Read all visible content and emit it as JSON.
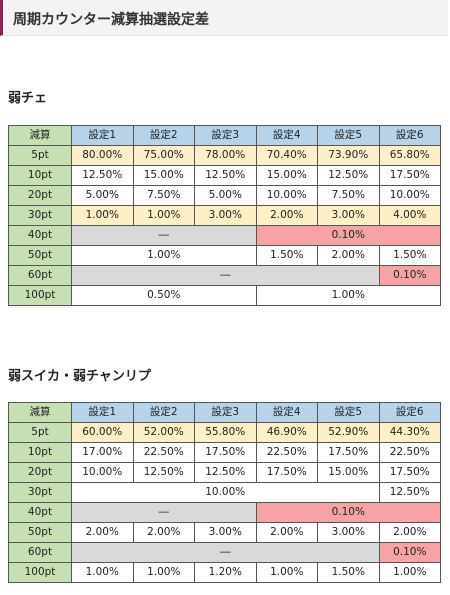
{
  "header": {
    "title": "周期カウンター減算抽選設定差"
  },
  "colors": {
    "header_accent": "#8b2352",
    "column_header": "#b6d3ea",
    "row_label": "#c6dfb3",
    "highlight_yellow": "#fdf0c6",
    "gray": "#d9d9d9",
    "red": "#f7a3a6"
  },
  "tables": [
    {
      "title": "弱チェ",
      "corner": "減算",
      "columns": [
        "設定1",
        "設定2",
        "設定3",
        "設定4",
        "設定5",
        "設定6"
      ],
      "rows": [
        {
          "label": "5pt",
          "cells": [
            {
              "text": "80.00%",
              "span": 1,
              "color": "y"
            },
            {
              "text": "75.00%",
              "span": 1,
              "color": "y"
            },
            {
              "text": "78.00%",
              "span": 1,
              "color": "y"
            },
            {
              "text": "70.40%",
              "span": 1,
              "color": "y"
            },
            {
              "text": "73.90%",
              "span": 1,
              "color": "y"
            },
            {
              "text": "65.80%",
              "span": 1,
              "color": "y"
            }
          ]
        },
        {
          "label": "10pt",
          "cells": [
            {
              "text": "12.50%",
              "span": 1,
              "color": "w"
            },
            {
              "text": "15.00%",
              "span": 1,
              "color": "w"
            },
            {
              "text": "12.50%",
              "span": 1,
              "color": "w"
            },
            {
              "text": "15.00%",
              "span": 1,
              "color": "w"
            },
            {
              "text": "12.50%",
              "span": 1,
              "color": "w"
            },
            {
              "text": "17.50%",
              "span": 1,
              "color": "w"
            }
          ]
        },
        {
          "label": "20pt",
          "cells": [
            {
              "text": "5.00%",
              "span": 1,
              "color": "w"
            },
            {
              "text": "7.50%",
              "span": 1,
              "color": "w"
            },
            {
              "text": "5.00%",
              "span": 1,
              "color": "w"
            },
            {
              "text": "10.00%",
              "span": 1,
              "color": "w"
            },
            {
              "text": "7.50%",
              "span": 1,
              "color": "w"
            },
            {
              "text": "10.00%",
              "span": 1,
              "color": "w"
            }
          ]
        },
        {
          "label": "30pt",
          "cells": [
            {
              "text": "1.00%",
              "span": 1,
              "color": "y"
            },
            {
              "text": "1.00%",
              "span": 1,
              "color": "y"
            },
            {
              "text": "3.00%",
              "span": 1,
              "color": "y"
            },
            {
              "text": "2.00%",
              "span": 1,
              "color": "y"
            },
            {
              "text": "3.00%",
              "span": 1,
              "color": "y"
            },
            {
              "text": "4.00%",
              "span": 1,
              "color": "y"
            }
          ]
        },
        {
          "label": "40pt",
          "cells": [
            {
              "text": "―",
              "span": 3,
              "color": "g"
            },
            {
              "text": "0.10%",
              "span": 3,
              "color": "r"
            }
          ]
        },
        {
          "label": "50pt",
          "cells": [
            {
              "text": "1.00%",
              "span": 3,
              "color": "w"
            },
            {
              "text": "1.50%",
              "span": 1,
              "color": "w"
            },
            {
              "text": "2.00%",
              "span": 1,
              "color": "w"
            },
            {
              "text": "1.50%",
              "span": 1,
              "color": "w"
            }
          ]
        },
        {
          "label": "60pt",
          "cells": [
            {
              "text": "―",
              "span": 5,
              "color": "g"
            },
            {
              "text": "0.10%",
              "span": 1,
              "color": "r"
            }
          ]
        },
        {
          "label": "100pt",
          "cells": [
            {
              "text": "0.50%",
              "span": 3,
              "color": "w"
            },
            {
              "text": "1.00%",
              "span": 3,
              "color": "w"
            }
          ]
        }
      ]
    },
    {
      "title": "弱スイカ・弱チャンリプ",
      "corner": "減算",
      "columns": [
        "設定1",
        "設定2",
        "設定3",
        "設定4",
        "設定5",
        "設定6"
      ],
      "rows": [
        {
          "label": "5pt",
          "cells": [
            {
              "text": "60.00%",
              "span": 1,
              "color": "y"
            },
            {
              "text": "52.00%",
              "span": 1,
              "color": "y"
            },
            {
              "text": "55.80%",
              "span": 1,
              "color": "y"
            },
            {
              "text": "46.90%",
              "span": 1,
              "color": "y"
            },
            {
              "text": "52.90%",
              "span": 1,
              "color": "y"
            },
            {
              "text": "44.30%",
              "span": 1,
              "color": "y"
            }
          ]
        },
        {
          "label": "10pt",
          "cells": [
            {
              "text": "17.00%",
              "span": 1,
              "color": "w"
            },
            {
              "text": "22.50%",
              "span": 1,
              "color": "w"
            },
            {
              "text": "17.50%",
              "span": 1,
              "color": "w"
            },
            {
              "text": "22.50%",
              "span": 1,
              "color": "w"
            },
            {
              "text": "17.50%",
              "span": 1,
              "color": "w"
            },
            {
              "text": "22.50%",
              "span": 1,
              "color": "w"
            }
          ]
        },
        {
          "label": "20pt",
          "cells": [
            {
              "text": "10.00%",
              "span": 1,
              "color": "w"
            },
            {
              "text": "12.50%",
              "span": 1,
              "color": "w"
            },
            {
              "text": "12.50%",
              "span": 1,
              "color": "w"
            },
            {
              "text": "17.50%",
              "span": 1,
              "color": "w"
            },
            {
              "text": "15.00%",
              "span": 1,
              "color": "w"
            },
            {
              "text": "17.50%",
              "span": 1,
              "color": "w"
            }
          ]
        },
        {
          "label": "30pt",
          "cells": [
            {
              "text": "10.00%",
              "span": 5,
              "color": "w"
            },
            {
              "text": "12.50%",
              "span": 1,
              "color": "w"
            }
          ]
        },
        {
          "label": "40pt",
          "cells": [
            {
              "text": "―",
              "span": 3,
              "color": "g"
            },
            {
              "text": "0.10%",
              "span": 3,
              "color": "r"
            }
          ]
        },
        {
          "label": "50pt",
          "cells": [
            {
              "text": "2.00%",
              "span": 1,
              "color": "w"
            },
            {
              "text": "2.00%",
              "span": 1,
              "color": "w"
            },
            {
              "text": "3.00%",
              "span": 1,
              "color": "w"
            },
            {
              "text": "2.00%",
              "span": 1,
              "color": "w"
            },
            {
              "text": "3.00%",
              "span": 1,
              "color": "w"
            },
            {
              "text": "2.00%",
              "span": 1,
              "color": "w"
            }
          ]
        },
        {
          "label": "60pt",
          "cells": [
            {
              "text": "―",
              "span": 5,
              "color": "g"
            },
            {
              "text": "0.10%",
              "span": 1,
              "color": "r"
            }
          ]
        },
        {
          "label": "100pt",
          "cells": [
            {
              "text": "1.00%",
              "span": 1,
              "color": "w"
            },
            {
              "text": "1.00%",
              "span": 1,
              "color": "w"
            },
            {
              "text": "1.20%",
              "span": 1,
              "color": "w"
            },
            {
              "text": "1.00%",
              "span": 1,
              "color": "w"
            },
            {
              "text": "1.50%",
              "span": 1,
              "color": "w"
            },
            {
              "text": "1.00%",
              "span": 1,
              "color": "w"
            }
          ]
        }
      ]
    }
  ]
}
